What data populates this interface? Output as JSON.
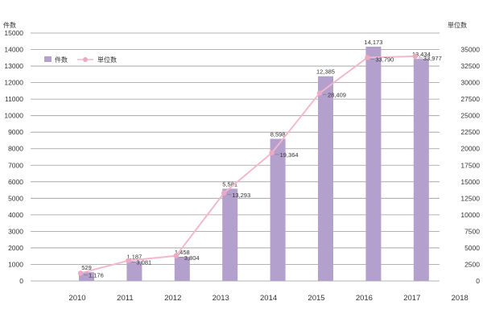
{
  "chart_data": {
    "type": "bar",
    "categories": [
      "2010",
      "2011",
      "2012",
      "2013",
      "2014",
      "2015",
      "2016",
      "2017",
      "2018"
    ],
    "series": [
      {
        "name": "件数",
        "type": "bar",
        "axis": "left",
        "values": [
          529,
          1187,
          1458,
          5581,
          8598,
          12385,
          14173,
          13434,
          null
        ],
        "labels": [
          "529",
          "1,187",
          "1,458",
          "5,581",
          "8,598",
          "12,385",
          "14,173",
          "13,434",
          ""
        ]
      },
      {
        "name": "単位数",
        "type": "line",
        "axis": "right",
        "values": [
          1176,
          3081,
          3804,
          13293,
          19364,
          28409,
          33790,
          33977,
          null
        ],
        "labels": [
          "1,176",
          "3,081",
          "3,804",
          "13,293",
          "19,364",
          "28,409",
          "33,790",
          "33,977",
          ""
        ]
      }
    ],
    "left_axis": {
      "unit": "件数",
      "ylim": [
        0,
        15000
      ],
      "ticks": [
        0,
        1000,
        2000,
        3000,
        4000,
        5000,
        6000,
        7000,
        8000,
        9000,
        10000,
        11000,
        12000,
        13000,
        14000,
        15000
      ]
    },
    "right_axis": {
      "unit": "単位数",
      "ylim": [
        0,
        37500
      ],
      "ticks": [
        0,
        2500,
        5000,
        7500,
        10000,
        12500,
        15000,
        17500,
        20000,
        22500,
        25000,
        27500,
        30000,
        32500,
        35000
      ]
    },
    "grid": true,
    "legend": "top-left",
    "colors": {
      "bar": "#b3a0cc",
      "line": "#f2b8cc",
      "marker": "#eca9c1",
      "grid": "#9a9a9a"
    }
  }
}
